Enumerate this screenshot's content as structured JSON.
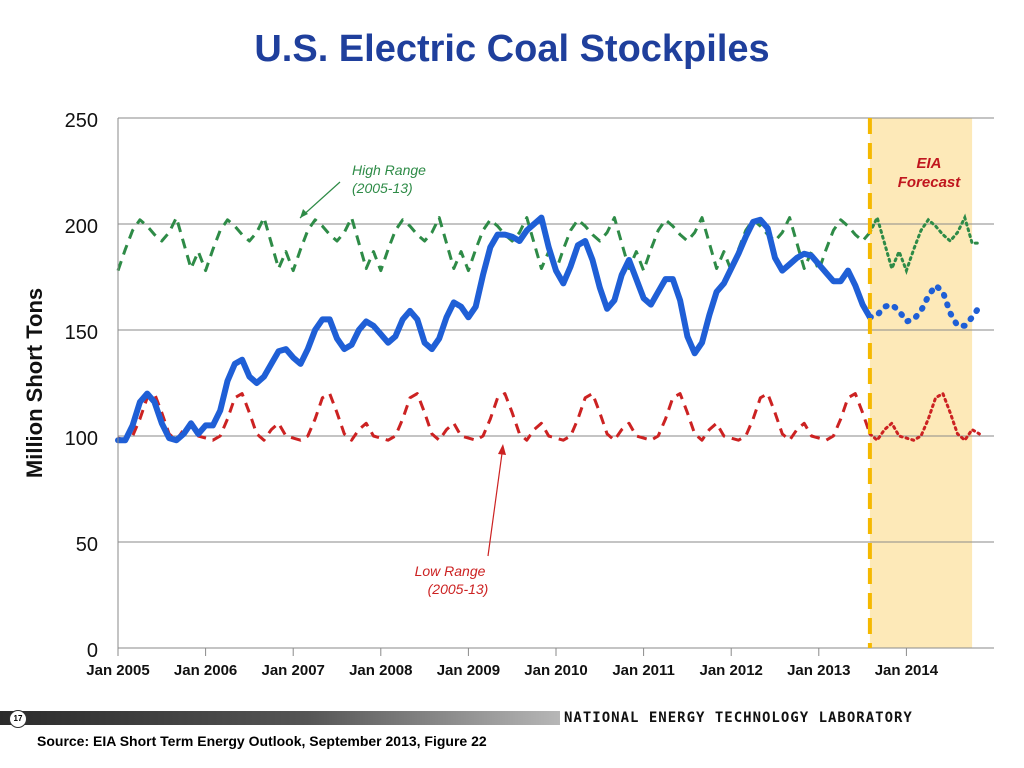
{
  "slide": {
    "title": "U.S. Electric Coal Stockpiles",
    "page_number": "17",
    "organization": "NATIONAL ENERGY TECHNOLOGY LABORATORY",
    "source": "Source: EIA Short Term Energy Outlook, September 2013, Figure 22"
  },
  "chart_data": {
    "type": "line",
    "title": "",
    "ylabel": "Million Short Tons",
    "xlabel": "",
    "ylim": [
      0,
      250
    ],
    "y_ticks": [
      0,
      50,
      100,
      150,
      200,
      250
    ],
    "y_tick_labels": [
      "0",
      "50",
      "100",
      "150",
      "200",
      "250"
    ],
    "x_tick_labels": [
      "Jan 2005",
      "Jan 2006",
      "Jan 2007",
      "Jan 2008",
      "Jan 2009",
      "Jan 2010",
      "Jan 2011",
      "Jan 2012",
      "Jan 2013",
      "Jan 2014"
    ],
    "x_start": "Jan 2005",
    "x_end": "Dec 2014",
    "grid": true,
    "forecast_start": "Aug 2013",
    "forecast_end": "Oct 2014",
    "forecast_label": [
      "EIA",
      "Forecast"
    ],
    "colors": {
      "stockpile": "#1f5fd6",
      "high_range": "#2e8b47",
      "low_range": "#cc2222",
      "forecast_line": "#f5b800",
      "forecast_fill": "#fde9b8"
    },
    "series": [
      {
        "style": "solid-historical-dotted-forecast",
        "x_start": "Jan 2005",
        "values": [
          98,
          98,
          105,
          116,
          120,
          116,
          106,
          99,
          98,
          101,
          106,
          101,
          105,
          105,
          112,
          126,
          134,
          136,
          128,
          125,
          128,
          134,
          140,
          141,
          137,
          134,
          141,
          150,
          155,
          155,
          146,
          141,
          143,
          150,
          154,
          152,
          148,
          144,
          147,
          155,
          159,
          155,
          144,
          141,
          146,
          156,
          163,
          161,
          156,
          161,
          176,
          189,
          195,
          195,
          194,
          192,
          197,
          200,
          203,
          189,
          178,
          172,
          180,
          190,
          192,
          183,
          170,
          160,
          164,
          176,
          183,
          174,
          165,
          162,
          168,
          174,
          174,
          164,
          147,
          139,
          144,
          157,
          168,
          172,
          179,
          186,
          194,
          201,
          202,
          198,
          184,
          178,
          181,
          184,
          186,
          185,
          181,
          177,
          173,
          173,
          178,
          171,
          162,
          156,
          157,
          161,
          162,
          159,
          154,
          155,
          159,
          166,
          171,
          168,
          158,
          152,
          152,
          156,
          161
        ],
        "forecast_from_index": 103
      },
      {
        "name": "High Range (2005-13)",
        "label_lines": [
          "High Range",
          "(2005-13)"
        ],
        "style": "dashed-historical-dotted-forecast",
        "x_start": "Jan 2005",
        "values": [
          178,
          188,
          197,
          202,
          199,
          195,
          192,
          196,
          203,
          191,
          179,
          187,
          178,
          188,
          197,
          202,
          199,
          195,
          192,
          196,
          203,
          191,
          179,
          187,
          178,
          188,
          197,
          202,
          199,
          195,
          192,
          196,
          203,
          191,
          179,
          187,
          178,
          188,
          197,
          202,
          199,
          195,
          192,
          196,
          203,
          191,
          179,
          187,
          178,
          188,
          197,
          202,
          199,
          195,
          192,
          196,
          203,
          191,
          179,
          187,
          178,
          188,
          197,
          202,
          199,
          195,
          192,
          196,
          203,
          191,
          179,
          187,
          178,
          188,
          197,
          202,
          199,
          195,
          192,
          196,
          203,
          191,
          179,
          187,
          178,
          188,
          197,
          202,
          199,
          195,
          192,
          196,
          203,
          191,
          179,
          187,
          178,
          188,
          197,
          202,
          199,
          195,
          192,
          196,
          203,
          191,
          179,
          187,
          178,
          188,
          197,
          202,
          199,
          195,
          192,
          196,
          203,
          191,
          191
        ],
        "forecast_from_index": 103
      },
      {
        "name": "Low Range (2005-13)",
        "label_lines": [
          "Low Range",
          "(2005-13)"
        ],
        "style": "dashed-historical-dotted-forecast",
        "x_start": "Jan 2005",
        "values": [
          99,
          98,
          100,
          108,
          118,
          120,
          111,
          101,
          98,
          103,
          106,
          100,
          99,
          98,
          100,
          108,
          118,
          120,
          111,
          101,
          98,
          103,
          106,
          100,
          99,
          98,
          100,
          108,
          118,
          120,
          111,
          101,
          98,
          103,
          106,
          100,
          99,
          98,
          100,
          108,
          118,
          120,
          111,
          101,
          98,
          103,
          106,
          100,
          99,
          98,
          100,
          108,
          118,
          120,
          111,
          101,
          98,
          103,
          106,
          100,
          99,
          98,
          100,
          108,
          118,
          120,
          111,
          101,
          98,
          103,
          106,
          100,
          99,
          98,
          100,
          108,
          118,
          120,
          111,
          101,
          98,
          103,
          106,
          100,
          99,
          98,
          100,
          108,
          118,
          120,
          111,
          101,
          98,
          103,
          106,
          100,
          99,
          98,
          100,
          108,
          118,
          120,
          111,
          101,
          98,
          103,
          106,
          100,
          99,
          98,
          100,
          108,
          118,
          120,
          111,
          101,
          98,
          103,
          101
        ],
        "forecast_from_index": 103
      }
    ]
  }
}
